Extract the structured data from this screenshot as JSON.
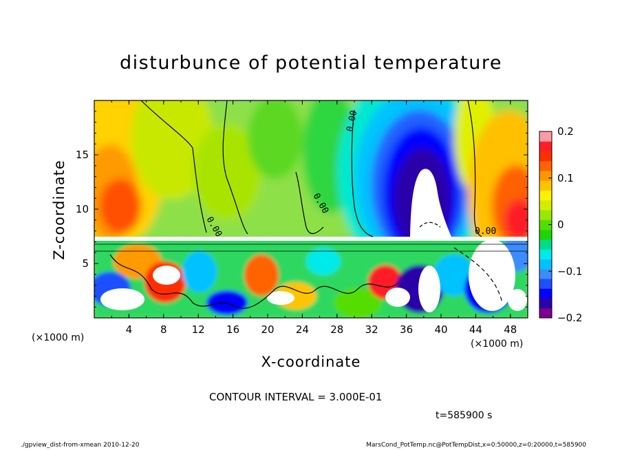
{
  "title": "disturbunce of potential temperature",
  "footer": {
    "left": "./gpview_dist-from-xmean  2010-12-20",
    "right": "MarsCond_PotTemp.nc@PotTempDist,x=0:50000,z=0:20000,t=585900"
  },
  "contour_interval": "CONTOUR INTERVAL = 3.000E-01",
  "time_label": "t=585900 s",
  "chart_data": {
    "type": "heatmap",
    "title": "disturbunce of potential temperature",
    "xlabel": "X-coordinate",
    "ylabel": "Z-coordinate",
    "x_unit_left": "(×1000 m)",
    "x_unit_right": "(×1000 m)",
    "xlim": [
      0,
      50
    ],
    "ylim": [
      0,
      20
    ],
    "x_ticks": [
      4,
      8,
      12,
      16,
      20,
      24,
      28,
      32,
      36,
      40,
      44,
      48
    ],
    "x_tick_labels": [
      "4",
      "8",
      "12",
      "16",
      "20",
      "24",
      "28",
      "32",
      "36",
      "40",
      "44",
      "48"
    ],
    "y_ticks": [
      5,
      10,
      15
    ],
    "y_tick_labels": [
      "5",
      "10",
      "15"
    ],
    "colorbar": {
      "range": [
        -0.2,
        0.2
      ],
      "tick_values": [
        0.2,
        0.1,
        0,
        -0.1,
        -0.2
      ],
      "tick_labels": [
        "0.2",
        "0.1",
        "0",
        "−0.1",
        "−0.2"
      ],
      "levels": [
        -0.22,
        -0.2,
        -0.175,
        -0.15,
        -0.125,
        -0.1,
        -0.075,
        -0.05,
        -0.025,
        0,
        0.025,
        0.05,
        0.075,
        0.1,
        0.125,
        0.15,
        0.175,
        0.2,
        0.22
      ],
      "colors": [
        "#800090",
        "#2c00a8",
        "#0000ff",
        "#1f4fff",
        "#3c8cff",
        "#00c2ff",
        "#00eaea",
        "#00dd8a",
        "#1fd400",
        "#55dd00",
        "#99e800",
        "#d2ee00",
        "#fff200",
        "#ffc400",
        "#ff9600",
        "#ff6400",
        "#ff2e00",
        "#ff1e28",
        "#ff9aa6"
      ]
    },
    "contour_labels": [
      "0.00",
      "0.00",
      "0.00",
      "0.00"
    ],
    "contour_interval": 0.3,
    "grid": false,
    "legend": "right"
  }
}
